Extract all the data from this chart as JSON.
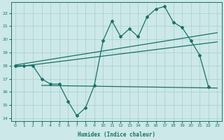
{
  "xlabel": "Humidex (Indice chaleur)",
  "xlim": [
    -0.5,
    23.5
  ],
  "ylim": [
    13.8,
    22.8
  ],
  "xticks": [
    0,
    1,
    2,
    3,
    4,
    5,
    6,
    7,
    8,
    9,
    10,
    11,
    12,
    13,
    14,
    15,
    16,
    17,
    18,
    19,
    20,
    21,
    22,
    23
  ],
  "yticks": [
    14,
    15,
    16,
    17,
    18,
    19,
    20,
    21,
    22
  ],
  "bg_color": "#cce8e8",
  "line_color": "#1a7068",
  "grid_color": "#aacccc",
  "line1_x": [
    0,
    1,
    2,
    3,
    4,
    5,
    6,
    7,
    8,
    9,
    10,
    11,
    12,
    13,
    14,
    15,
    16,
    17,
    18,
    19,
    20,
    21,
    22
  ],
  "line1_y": [
    18,
    18,
    18,
    17,
    16.6,
    16.6,
    15.3,
    14.2,
    14.8,
    16.5,
    19.9,
    21.4,
    20.2,
    20.8,
    20.2,
    21.7,
    22.3,
    22.5,
    21.3,
    20.9,
    19.9,
    18.8,
    16.4
  ],
  "line2_x": [
    0,
    23
  ],
  "line2_y": [
    17.9,
    19.8
  ],
  "line3_x": [
    0,
    23
  ],
  "line3_y": [
    18.05,
    20.5
  ],
  "line4_x": [
    3,
    23
  ],
  "line4_y": [
    16.5,
    16.3
  ]
}
